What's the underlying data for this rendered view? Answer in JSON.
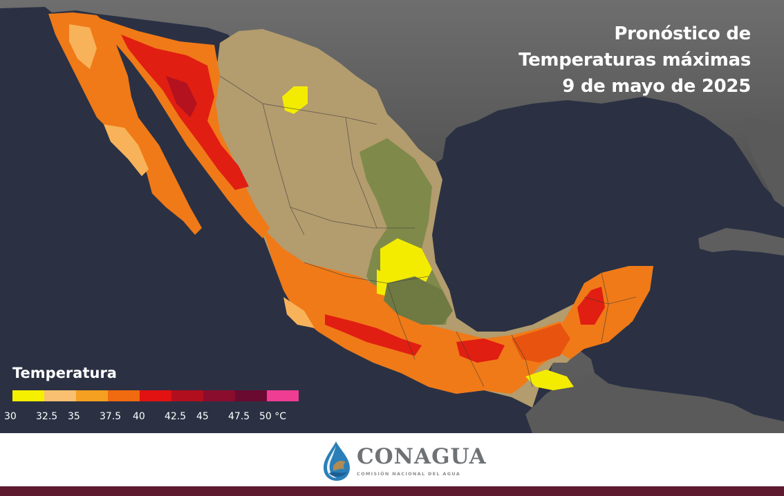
{
  "title": {
    "line1": "Pronóstico de",
    "line2": "Temperaturas máximas",
    "line3": "9 de mayo de 2025"
  },
  "legend": {
    "title": "Temperatura",
    "colors": [
      "#f5f000",
      "#f8c070",
      "#f5a020",
      "#f06a10",
      "#e21212",
      "#b20f1e",
      "#8a0d2e",
      "#6a0a30",
      "#ee3d92"
    ],
    "ticks": [
      "30",
      "32.5",
      "35",
      "37.5",
      "40",
      "42.5",
      "45",
      "47.5",
      "50 °C"
    ]
  },
  "footer": {
    "logo_name": "CONAGUA",
    "logo_subtitle": "COMISIÓN NACIONAL DEL AGUA",
    "bar_color": "#5e1a2e"
  }
}
